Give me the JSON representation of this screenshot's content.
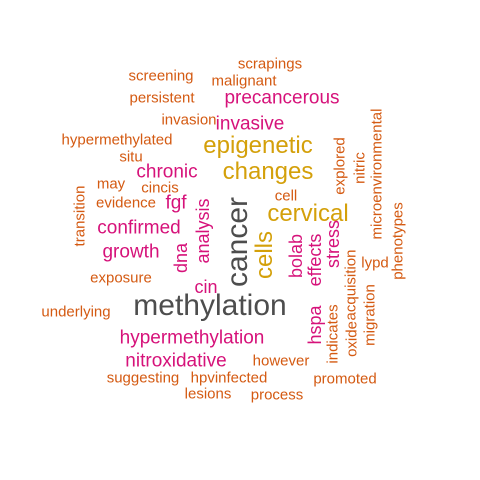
{
  "palette": {
    "gray": "#4d4d4d",
    "magenta": "#d6127a",
    "gold": "#d4a00a",
    "orange": "#d45a12"
  },
  "words": [
    {
      "key": "methylation",
      "text": "methylation",
      "color": "gray"
    },
    {
      "key": "cancer",
      "text": "cancer",
      "color": "gray"
    },
    {
      "key": "epigenetic",
      "text": "epigenetic",
      "color": "gold"
    },
    {
      "key": "changes",
      "text": "changes",
      "color": "gold"
    },
    {
      "key": "cervical",
      "text": "cervical",
      "color": "gold"
    },
    {
      "key": "cells",
      "text": "cells",
      "color": "gold"
    },
    {
      "key": "precancerous",
      "text": "precancerous",
      "color": "magenta"
    },
    {
      "key": "invasive",
      "text": "invasive",
      "color": "magenta"
    },
    {
      "key": "chronic",
      "text": "chronic",
      "color": "magenta"
    },
    {
      "key": "confirmed",
      "text": "confirmed",
      "color": "magenta"
    },
    {
      "key": "growth",
      "text": "growth",
      "color": "magenta"
    },
    {
      "key": "hypermethylation",
      "text": "hypermethylation",
      "color": "magenta"
    },
    {
      "key": "nitroxidative",
      "text": "nitroxidative",
      "color": "magenta"
    },
    {
      "key": "fgf",
      "text": "fgf",
      "color": "magenta"
    },
    {
      "key": "analysis",
      "text": "analysis",
      "color": "magenta"
    },
    {
      "key": "dna",
      "text": "dna",
      "color": "magenta"
    },
    {
      "key": "cin",
      "text": "cin",
      "color": "magenta"
    },
    {
      "key": "bolab",
      "text": "bolab",
      "color": "magenta"
    },
    {
      "key": "effects",
      "text": "effects",
      "color": "magenta"
    },
    {
      "key": "stress",
      "text": "stress",
      "color": "magenta"
    },
    {
      "key": "hspa",
      "text": "hspa",
      "color": "magenta"
    },
    {
      "key": "scrapings",
      "text": "scrapings",
      "color": "orange"
    },
    {
      "key": "screening",
      "text": "screening",
      "color": "orange"
    },
    {
      "key": "malignant",
      "text": "malignant",
      "color": "orange"
    },
    {
      "key": "persistent",
      "text": "persistent",
      "color": "orange"
    },
    {
      "key": "invasion",
      "text": "invasion",
      "color": "orange"
    },
    {
      "key": "hypermethylated",
      "text": "hypermethylated",
      "color": "orange"
    },
    {
      "key": "situ",
      "text": "situ",
      "color": "orange"
    },
    {
      "key": "may",
      "text": "may",
      "color": "orange"
    },
    {
      "key": "cincis",
      "text": "cincis",
      "color": "orange"
    },
    {
      "key": "evidence",
      "text": "evidence",
      "color": "orange"
    },
    {
      "key": "transition",
      "text": "transition",
      "color": "orange"
    },
    {
      "key": "exposure",
      "text": "exposure",
      "color": "orange"
    },
    {
      "key": "underlying",
      "text": "underlying",
      "color": "orange"
    },
    {
      "key": "suggesting",
      "text": "suggesting",
      "color": "orange"
    },
    {
      "key": "hpvinfected",
      "text": "hpvinfected",
      "color": "orange"
    },
    {
      "key": "however",
      "text": "however",
      "color": "orange"
    },
    {
      "key": "lesions",
      "text": "lesions",
      "color": "orange"
    },
    {
      "key": "process",
      "text": "process",
      "color": "orange"
    },
    {
      "key": "promoted",
      "text": "promoted",
      "color": "orange"
    },
    {
      "key": "cell",
      "text": "cell",
      "color": "orange"
    },
    {
      "key": "explored",
      "text": "explored",
      "color": "orange"
    },
    {
      "key": "nitric",
      "text": "nitric",
      "color": "orange"
    },
    {
      "key": "microenvironmental",
      "text": "microenvironmental",
      "color": "orange"
    },
    {
      "key": "phenotypes",
      "text": "phenotypes",
      "color": "orange"
    },
    {
      "key": "lypd",
      "text": "lypd",
      "color": "orange"
    },
    {
      "key": "acquisition",
      "text": "acquisition",
      "color": "orange"
    },
    {
      "key": "oxide",
      "text": "oxide",
      "color": "orange"
    },
    {
      "key": "migration",
      "text": "migration",
      "color": "orange"
    },
    {
      "key": "indicates",
      "text": "indicates",
      "color": "orange"
    }
  ]
}
